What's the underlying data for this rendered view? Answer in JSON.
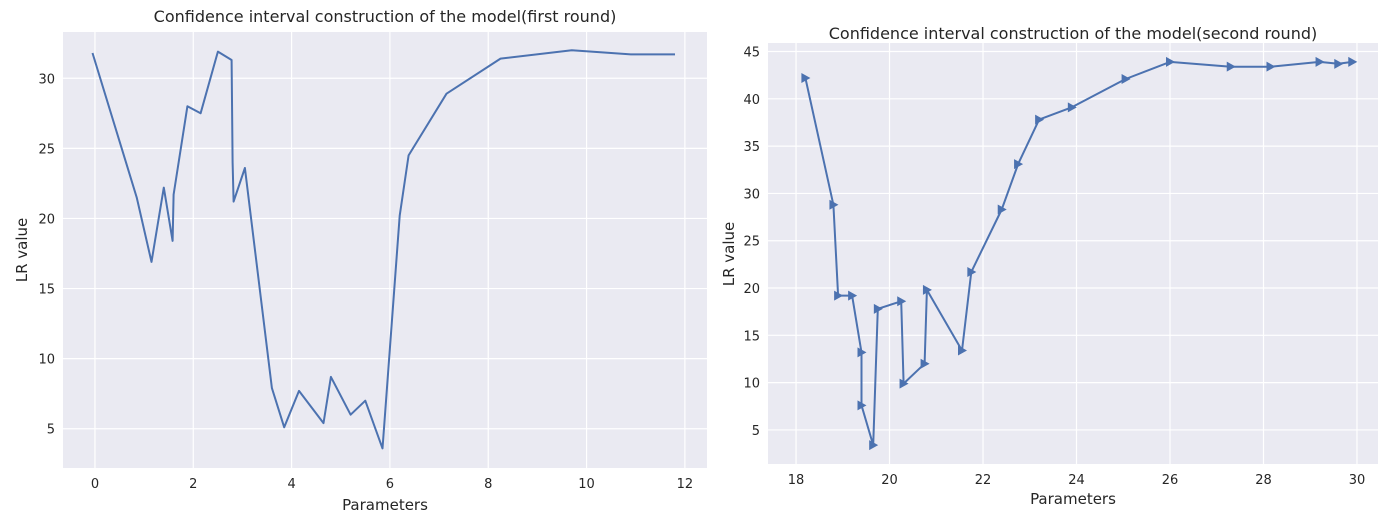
{
  "chart_data": [
    {
      "type": "line",
      "title": "Confidence interval construction of the model(first round)",
      "xlabel": "Parameters",
      "ylabel": "LR value",
      "xlim": [
        -0.65,
        12.45
      ],
      "ylim": [
        2.2,
        33.3
      ],
      "xticks": [
        0,
        2,
        4,
        6,
        8,
        10,
        12
      ],
      "yticks": [
        5,
        10,
        15,
        20,
        25,
        30
      ],
      "grid": true,
      "markers": false,
      "series": [
        {
          "x": [
            -0.05,
            0.85,
            1.15,
            1.4,
            1.58,
            1.6,
            1.88,
            2.15,
            2.5,
            2.78,
            2.8,
            2.82,
            3.05,
            3.6,
            3.85,
            4.15,
            4.65,
            4.8,
            5.2,
            5.5,
            5.85,
            6.2,
            6.38,
            7.15,
            8.25,
            9.7,
            10.9,
            11.8
          ],
          "y": [
            31.8,
            21.5,
            16.9,
            22.2,
            18.4,
            21.7,
            28.0,
            27.5,
            31.9,
            31.3,
            24.0,
            21.2,
            23.6,
            7.9,
            5.1,
            7.7,
            5.4,
            8.7,
            6.0,
            7.0,
            3.6,
            20.2,
            24.5,
            28.9,
            31.4,
            32.0,
            31.7,
            31.7
          ]
        }
      ]
    },
    {
      "type": "line",
      "title": "Confidence interval construction of the model(second round)",
      "xlabel": "Parameters",
      "ylabel": "LR value",
      "xlim": [
        17.4,
        30.45
      ],
      "ylim": [
        1.4,
        45.9
      ],
      "xticks": [
        18,
        20,
        22,
        24,
        26,
        28,
        30
      ],
      "yticks": [
        5,
        10,
        15,
        20,
        25,
        30,
        35,
        40,
        45
      ],
      "grid": true,
      "markers": true,
      "series": [
        {
          "x": [
            18.2,
            18.8,
            18.9,
            19.2,
            19.4,
            19.4,
            19.65,
            19.75,
            20.25,
            20.3,
            20.75,
            20.8,
            21.55,
            21.75,
            22.4,
            22.75,
            23.2,
            23.9,
            25.05,
            26.0,
            27.3,
            28.15,
            29.2,
            29.6,
            29.9
          ],
          "y": [
            42.2,
            28.8,
            19.2,
            19.2,
            13.2,
            7.6,
            3.4,
            17.8,
            18.6,
            9.9,
            12.0,
            19.8,
            13.4,
            21.7,
            28.3,
            33.1,
            37.8,
            39.1,
            42.1,
            43.9,
            43.4,
            43.4,
            43.9,
            43.7,
            43.9
          ]
        }
      ]
    }
  ]
}
